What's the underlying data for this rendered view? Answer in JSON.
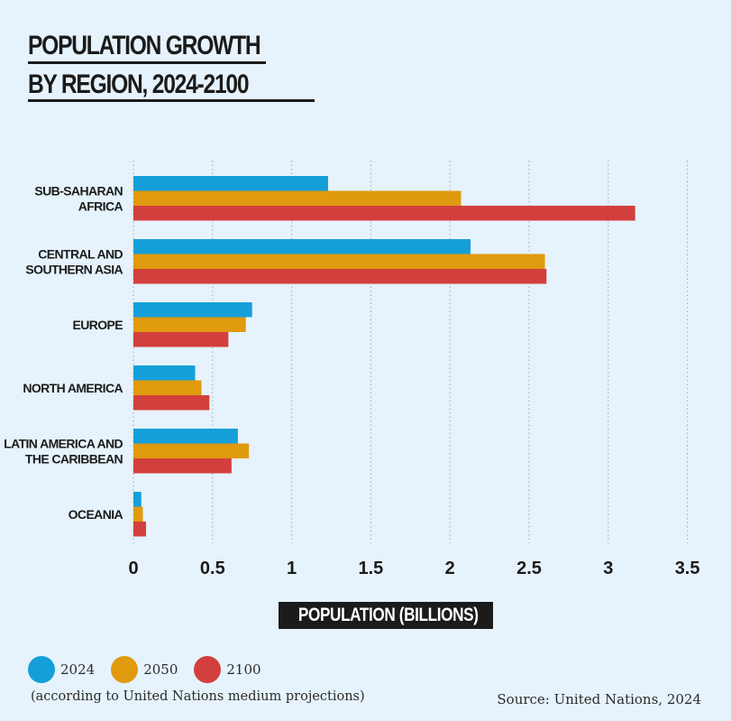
{
  "title_line1": "POPULATION GROWTH",
  "title_line2": "BY REGION, 2024-2100",
  "note": "(according to United Nations medium projections)",
  "source": "Source: United Nations, 2024",
  "colors": {
    "background": "#e6f3fc",
    "2024": "#159fd9",
    "2050": "#df9a0e",
    "2100": "#d33f3d",
    "text": "#1b1b1b"
  },
  "chart_data": {
    "type": "bar",
    "orientation": "horizontal",
    "title": "POPULATION GROWTH BY REGION, 2024-2100",
    "xlabel": "POPULATION (BILLIONS)",
    "ylabel": "",
    "xlim": [
      0,
      3.5
    ],
    "xticks": [
      "0",
      "0.5",
      "1",
      "1.5",
      "2",
      "2.5",
      "3",
      "3.5"
    ],
    "xtick_values": [
      0,
      0.5,
      1,
      1.5,
      2,
      2.5,
      3,
      3.5
    ],
    "grid": "vertical dotted",
    "categories": [
      [
        "SUB-SAHARAN",
        "AFRICA"
      ],
      [
        "CENTRAL AND",
        "SOUTHERN ASIA"
      ],
      [
        "EUROPE"
      ],
      [
        "NORTH AMERICA"
      ],
      [
        "LATIN AMERICA AND",
        "THE CARIBBEAN"
      ],
      [
        "OCEANIA"
      ]
    ],
    "series": [
      {
        "name": "2024",
        "color": "#159fd9",
        "values": [
          1.23,
          2.13,
          0.75,
          0.39,
          0.66,
          0.05
        ]
      },
      {
        "name": "2050",
        "color": "#df9a0e",
        "values": [
          2.07,
          2.6,
          0.71,
          0.43,
          0.73,
          0.06
        ]
      },
      {
        "name": "2100",
        "color": "#d33f3d",
        "values": [
          3.17,
          2.61,
          0.6,
          0.48,
          0.62,
          0.08
        ]
      }
    ],
    "legend": "bottom-left"
  }
}
